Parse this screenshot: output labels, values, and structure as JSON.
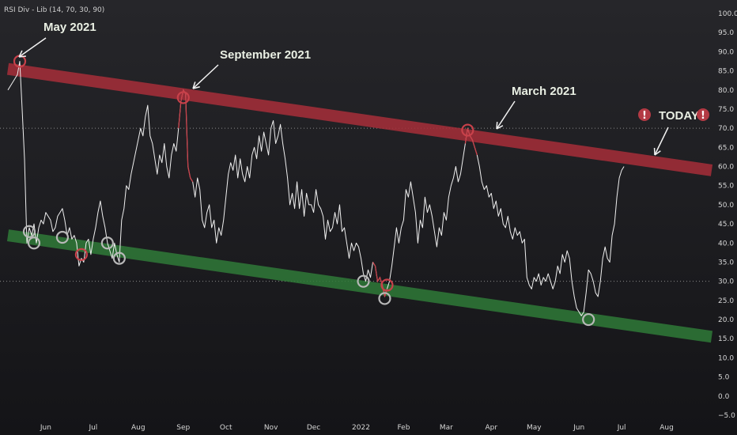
{
  "indicator_label": "RSI Div - Lib (14, 70, 30, 90)",
  "colors": {
    "background": "#1c1c20",
    "rsi_line": "#f0f0f0",
    "overbought_segment": "#c8414a",
    "resistance_band": "#a72e39",
    "support_band": "#2f7a38",
    "level_line": "#8a8a8a",
    "marker_red": "#c8414a",
    "marker_grey": "#b8b8b8",
    "warning_icon": "#b33a44"
  },
  "annotations": [
    {
      "text": "May 2021",
      "x": 16,
      "y": 88
    },
    {
      "text": "September 2021",
      "x": 84,
      "y": 77
    },
    {
      "text": "March 2021",
      "x": 212,
      "y": 69
    },
    {
      "text": "TODAY",
      "x": 278,
      "y": 61
    }
  ],
  "warning_icons": [
    "exclamation-icon",
    "exclamation-icon"
  ],
  "chart_data": {
    "type": "line",
    "title": "",
    "xlabel": "",
    "ylabel": "",
    "ylim": [
      -5,
      100
    ],
    "yticks": [
      "−5.0",
      "0.0",
      "5.0",
      "10.0",
      "15.0",
      "20.0",
      "25.0",
      "30.0",
      "35.0",
      "40.0",
      "45.0",
      "50.0",
      "55.0",
      "60.0",
      "65.0",
      "70.0",
      "75.0",
      "80.0",
      "85.0",
      "90.0",
      "95.0",
      "100.0"
    ],
    "xlim": [
      0,
      297
    ],
    "xticks": [
      {
        "label": "Jun",
        "x": 16
      },
      {
        "label": "Jul",
        "x": 36
      },
      {
        "label": "Aug",
        "x": 55
      },
      {
        "label": "Sep",
        "x": 74
      },
      {
        "label": "Oct",
        "x": 92
      },
      {
        "label": "Nov",
        "x": 111
      },
      {
        "label": "Dec",
        "x": 129
      },
      {
        "label": "2022",
        "x": 149
      },
      {
        "label": "Feb",
        "x": 167
      },
      {
        "label": "Mar",
        "x": 185
      },
      {
        "label": "Apr",
        "x": 204
      },
      {
        "label": "May",
        "x": 222
      },
      {
        "label": "Jun",
        "x": 241
      },
      {
        "label": "Jul",
        "x": 259
      },
      {
        "label": "Aug",
        "x": 278
      }
    ],
    "levels": [
      70,
      30
    ],
    "channel": {
      "resistance": {
        "start": [
          0,
          85.5
        ],
        "end": [
          297,
          59
        ]
      },
      "support": {
        "start": [
          0,
          42
        ],
        "end": [
          297,
          15.5
        ]
      }
    },
    "series": [
      {
        "values": [
          [
            0,
            80
          ],
          [
            2,
            82
          ],
          [
            4,
            84
          ],
          [
            5,
            87.5
          ],
          [
            6,
            75
          ],
          [
            7,
            62
          ],
          [
            8,
            40
          ],
          [
            9,
            44
          ],
          [
            10,
            42
          ],
          [
            11,
            45
          ],
          [
            12,
            40
          ],
          [
            13,
            44
          ],
          [
            14,
            46
          ],
          [
            15,
            45
          ],
          [
            16,
            48
          ],
          [
            17,
            47
          ],
          [
            18,
            46
          ],
          [
            19,
            43
          ],
          [
            20,
            44
          ],
          [
            21,
            47
          ],
          [
            22,
            48
          ],
          [
            23,
            49
          ],
          [
            24,
            46
          ],
          [
            25,
            42
          ],
          [
            26,
            44
          ],
          [
            27,
            41
          ],
          [
            28,
            42
          ],
          [
            29,
            40
          ],
          [
            30,
            34
          ],
          [
            31,
            36
          ],
          [
            32,
            35
          ],
          [
            33,
            40
          ],
          [
            34,
            41
          ],
          [
            35,
            37
          ],
          [
            36,
            41
          ],
          [
            37,
            44
          ],
          [
            38,
            48
          ],
          [
            39,
            51
          ],
          [
            40,
            47
          ],
          [
            41,
            44
          ],
          [
            42,
            40
          ],
          [
            43,
            38
          ],
          [
            44,
            36
          ],
          [
            45,
            40
          ],
          [
            46,
            37
          ],
          [
            47,
            35
          ],
          [
            48,
            46
          ],
          [
            49,
            49
          ],
          [
            50,
            55
          ],
          [
            51,
            54
          ],
          [
            52,
            58
          ],
          [
            53,
            61
          ],
          [
            54,
            64
          ],
          [
            55,
            67
          ],
          [
            56,
            70
          ],
          [
            57,
            68
          ],
          [
            58,
            73
          ],
          [
            59,
            76
          ],
          [
            60,
            68
          ],
          [
            61,
            66
          ],
          [
            62,
            62
          ],
          [
            63,
            58
          ],
          [
            64,
            63
          ],
          [
            65,
            61
          ],
          [
            66,
            66
          ],
          [
            67,
            60
          ],
          [
            68,
            57
          ],
          [
            69,
            63
          ],
          [
            70,
            66
          ],
          [
            71,
            64
          ],
          [
            72,
            70
          ],
          [
            73,
            77
          ],
          [
            74,
            80
          ],
          [
            75,
            79
          ],
          [
            76,
            60
          ],
          [
            77,
            57
          ],
          [
            78,
            56
          ],
          [
            79,
            52
          ],
          [
            80,
            57
          ],
          [
            81,
            54
          ],
          [
            82,
            46
          ],
          [
            83,
            44
          ],
          [
            84,
            48
          ],
          [
            85,
            50
          ],
          [
            86,
            44
          ],
          [
            87,
            46
          ],
          [
            88,
            40
          ],
          [
            89,
            44
          ],
          [
            90,
            42
          ],
          [
            91,
            46
          ],
          [
            92,
            52
          ],
          [
            93,
            58
          ],
          [
            94,
            61
          ],
          [
            95,
            59
          ],
          [
            96,
            63
          ],
          [
            97,
            57
          ],
          [
            98,
            62
          ],
          [
            99,
            58
          ],
          [
            100,
            56
          ],
          [
            101,
            60
          ],
          [
            102,
            57
          ],
          [
            103,
            63
          ],
          [
            104,
            65
          ],
          [
            105,
            62
          ],
          [
            106,
            68
          ],
          [
            107,
            64
          ],
          [
            108,
            69
          ],
          [
            109,
            66
          ],
          [
            110,
            63
          ],
          [
            111,
            70
          ],
          [
            112,
            72
          ],
          [
            113,
            66
          ],
          [
            114,
            68
          ],
          [
            115,
            71
          ],
          [
            116,
            66
          ],
          [
            117,
            62
          ],
          [
            118,
            57
          ],
          [
            119,
            50
          ],
          [
            120,
            53
          ],
          [
            121,
            49
          ],
          [
            122,
            56
          ],
          [
            123,
            49
          ],
          [
            124,
            54
          ],
          [
            125,
            47
          ],
          [
            126,
            53
          ],
          [
            127,
            50
          ],
          [
            128,
            50
          ],
          [
            129,
            48
          ],
          [
            130,
            54
          ],
          [
            131,
            50
          ],
          [
            132,
            49
          ],
          [
            133,
            47
          ],
          [
            134,
            41
          ],
          [
            135,
            46
          ],
          [
            136,
            43
          ],
          [
            137,
            44
          ],
          [
            138,
            48
          ],
          [
            139,
            45
          ],
          [
            140,
            50
          ],
          [
            141,
            43
          ],
          [
            142,
            44
          ],
          [
            143,
            40
          ],
          [
            144,
            36
          ],
          [
            145,
            40
          ],
          [
            146,
            38
          ],
          [
            147,
            40
          ],
          [
            148,
            39
          ],
          [
            149,
            36
          ],
          [
            150,
            32
          ],
          [
            151,
            30
          ],
          [
            152,
            33
          ],
          [
            153,
            31
          ],
          [
            154,
            35
          ],
          [
            155,
            34
          ],
          [
            156,
            30
          ],
          [
            157,
            31
          ],
          [
            158,
            29
          ],
          [
            159,
            26
          ],
          [
            160,
            28
          ],
          [
            161,
            30
          ],
          [
            162,
            34
          ],
          [
            163,
            39
          ],
          [
            164,
            44
          ],
          [
            165,
            40
          ],
          [
            166,
            44
          ],
          [
            167,
            46
          ],
          [
            168,
            54
          ],
          [
            169,
            52
          ],
          [
            170,
            56
          ],
          [
            171,
            52
          ],
          [
            172,
            48
          ],
          [
            173,
            40
          ],
          [
            174,
            46
          ],
          [
            175,
            44
          ],
          [
            176,
            52
          ],
          [
            177,
            48
          ],
          [
            178,
            50
          ],
          [
            179,
            47
          ],
          [
            180,
            43
          ],
          [
            181,
            39
          ],
          [
            182,
            44
          ],
          [
            183,
            42
          ],
          [
            184,
            48
          ],
          [
            185,
            46
          ],
          [
            186,
            52
          ],
          [
            187,
            55
          ],
          [
            188,
            57
          ],
          [
            189,
            60
          ],
          [
            190,
            56
          ],
          [
            191,
            58
          ],
          [
            192,
            62
          ],
          [
            193,
            66
          ],
          [
            194,
            70
          ],
          [
            195,
            68
          ],
          [
            196,
            67
          ],
          [
            197,
            65
          ],
          [
            198,
            63
          ],
          [
            199,
            60
          ],
          [
            200,
            56
          ],
          [
            201,
            54
          ],
          [
            202,
            55
          ],
          [
            203,
            52
          ],
          [
            204,
            53
          ],
          [
            205,
            49
          ],
          [
            206,
            51
          ],
          [
            207,
            47
          ],
          [
            208,
            49
          ],
          [
            209,
            45
          ],
          [
            210,
            44
          ],
          [
            211,
            47
          ],
          [
            212,
            43
          ],
          [
            213,
            41
          ],
          [
            214,
            44
          ],
          [
            215,
            42
          ],
          [
            216,
            43
          ],
          [
            217,
            40
          ],
          [
            218,
            41
          ],
          [
            219,
            31
          ],
          [
            220,
            29
          ],
          [
            221,
            28
          ],
          [
            222,
            31
          ],
          [
            223,
            30
          ],
          [
            224,
            32
          ],
          [
            225,
            29
          ],
          [
            226,
            31
          ],
          [
            227,
            30
          ],
          [
            228,
            32
          ],
          [
            229,
            30
          ],
          [
            230,
            28
          ],
          [
            231,
            30
          ],
          [
            232,
            34
          ],
          [
            233,
            32
          ],
          [
            234,
            37
          ],
          [
            235,
            35
          ],
          [
            236,
            38
          ],
          [
            237,
            36
          ],
          [
            238,
            30
          ],
          [
            239,
            26
          ],
          [
            240,
            23
          ],
          [
            241,
            22
          ],
          [
            242,
            21
          ],
          [
            243,
            22
          ],
          [
            244,
            27
          ],
          [
            245,
            33
          ],
          [
            246,
            32
          ],
          [
            247,
            30
          ],
          [
            248,
            27
          ],
          [
            249,
            26
          ],
          [
            250,
            30
          ],
          [
            251,
            36
          ],
          [
            252,
            39
          ],
          [
            253,
            36
          ],
          [
            254,
            35
          ],
          [
            255,
            42
          ],
          [
            256,
            45
          ],
          [
            257,
            52
          ],
          [
            258,
            57
          ],
          [
            259,
            59
          ],
          [
            260,
            60
          ]
        ]
      }
    ],
    "overbought_segments": [
      [
        72,
        78
      ],
      [
        193,
        198
      ],
      [
        154,
        160
      ]
    ],
    "markers": [
      {
        "x": 5,
        "y": 87.5,
        "color": "red"
      },
      {
        "x": 74,
        "y": 78,
        "color": "red"
      },
      {
        "x": 194,
        "y": 69.5,
        "color": "red"
      },
      {
        "x": 9,
        "y": 43,
        "color": "grey"
      },
      {
        "x": 11,
        "y": 40,
        "color": "grey"
      },
      {
        "x": 23,
        "y": 41.5,
        "color": "grey"
      },
      {
        "x": 31,
        "y": 37,
        "color": "red"
      },
      {
        "x": 42,
        "y": 40,
        "color": "grey"
      },
      {
        "x": 47,
        "y": 36,
        "color": "grey"
      },
      {
        "x": 150,
        "y": 30,
        "color": "grey"
      },
      {
        "x": 160,
        "y": 29,
        "color": "red"
      },
      {
        "x": 159,
        "y": 25.5,
        "color": "grey"
      },
      {
        "x": 245,
        "y": 20,
        "color": "grey"
      }
    ]
  }
}
